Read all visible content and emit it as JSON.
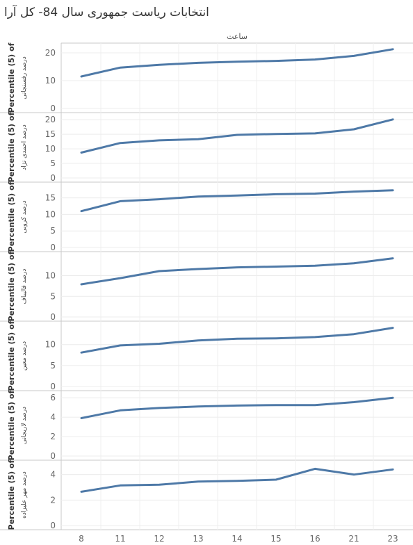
{
  "title": "انتخابات ریاست جمهوری سال 84- کل آرا",
  "chart_data": {
    "type": "line",
    "title": "انتخابات ریاست جمهوری سال 84- کل آرا",
    "xlabel": "ساعت",
    "categories": [
      "8",
      "11",
      "12",
      "13",
      "14",
      "15",
      "16",
      "21",
      "23"
    ],
    "line_color": "#4e79a7",
    "grid": true,
    "panels": [
      {
        "ylabel_line1": "Percentile (5) of",
        "ylabel_line2": "درصد رفسنجانی",
        "ylim": [
          0,
          22
        ],
        "ticks": [
          0,
          10,
          20
        ],
        "values": [
          11.5,
          14.7,
          15.7,
          16.4,
          16.8,
          17.1,
          17.6,
          18.9,
          21.3
        ]
      },
      {
        "ylabel_line1": "Percentile (5) of",
        "ylabel_line2": "درصد احمدی نژاد",
        "ylim": [
          0,
          21
        ],
        "ticks": [
          0,
          5,
          10,
          15,
          20
        ],
        "values": [
          8.7,
          12.0,
          12.9,
          13.3,
          14.8,
          15.1,
          15.3,
          16.7,
          20.1
        ]
      },
      {
        "ylabel_line1": "Percentile (5) of",
        "ylabel_line2": "درصد کروبی",
        "ylim": [
          0,
          18.5
        ],
        "ticks": [
          0,
          5,
          10,
          15
        ],
        "values": [
          11.0,
          14.0,
          14.6,
          15.4,
          15.7,
          16.1,
          16.3,
          16.9,
          17.3
        ]
      },
      {
        "ylabel_line1": "Percentile (5) of",
        "ylabel_line2": "درصد قالیباف",
        "ylim": [
          0,
          14.8
        ],
        "ticks": [
          0,
          5,
          10
        ],
        "values": [
          7.9,
          9.4,
          11.1,
          11.6,
          12.0,
          12.2,
          12.4,
          13.0,
          14.2
        ]
      },
      {
        "ylabel_line1": "Percentile (5) of",
        "ylabel_line2": "درصد معین",
        "ylim": [
          0,
          14.6
        ],
        "ticks": [
          0,
          5,
          10
        ],
        "values": [
          8.1,
          9.8,
          10.2,
          11.0,
          11.4,
          11.5,
          11.8,
          12.5,
          14.0
        ]
      },
      {
        "ylabel_line1": "Percentile (5) of",
        "ylabel_line2": "درصد لاریجانی",
        "ylim": [
          0,
          6.3
        ],
        "ticks": [
          0,
          2,
          4,
          6
        ],
        "values": [
          3.9,
          4.7,
          4.95,
          5.1,
          5.2,
          5.25,
          5.25,
          5.55,
          6.0
        ]
      },
      {
        "ylabel_line1": "Percentile (5) of",
        "ylabel_line2": "درصد مهر علیزاده",
        "ylim": [
          0,
          4.8
        ],
        "ticks": [
          0,
          2,
          4
        ],
        "values": [
          2.65,
          3.15,
          3.2,
          3.45,
          3.5,
          3.6,
          4.45,
          4.0,
          4.4
        ]
      }
    ]
  }
}
